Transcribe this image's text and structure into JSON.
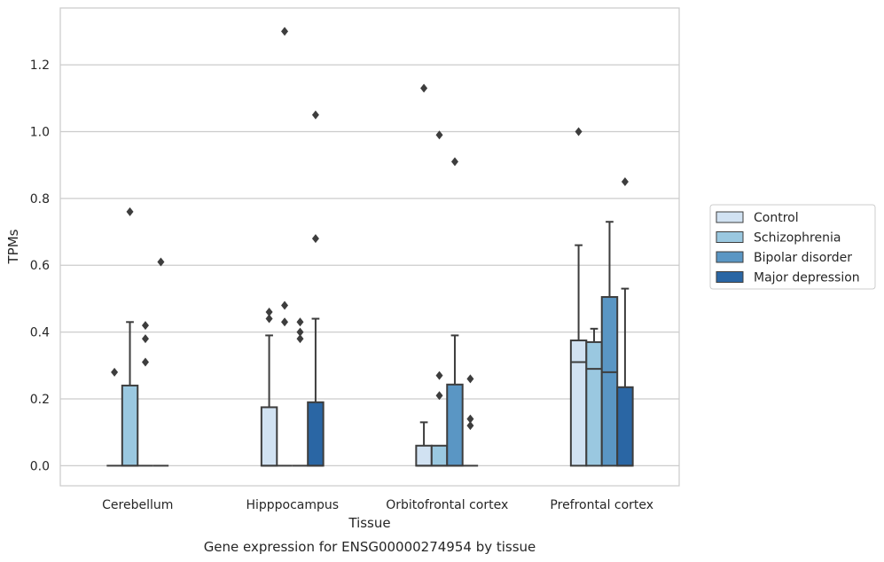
{
  "caption": "Gene expression for ENSG00000274954 by tissue",
  "chart_data": {
    "type": "box",
    "xlabel": "Tissue",
    "ylabel": "TPMs",
    "ylim": [
      -0.06,
      1.37
    ],
    "yticks": [
      0.0,
      0.2,
      0.4,
      0.6,
      0.8,
      1.0,
      1.2
    ],
    "ytick_labels": [
      "0.0",
      "0.2",
      "0.4",
      "0.6",
      "0.8",
      "1.0",
      "1.2"
    ],
    "grid": "horizontal",
    "legend_position": "right",
    "categories": [
      "Cerebellum",
      "Hipppocampus",
      "Orbitofrontal cortex",
      "Prefrontal cortex"
    ],
    "series": [
      {
        "name": "Control",
        "color": "#d1e2f2",
        "boxes": [
          {
            "q1": 0.0,
            "median": 0.0,
            "q3": 0.0,
            "whisker_low": 0.0,
            "whisker_high": 0.0,
            "outliers": [
              0.28
            ]
          },
          {
            "q1": 0.0,
            "median": 0.0,
            "q3": 0.175,
            "whisker_low": 0.0,
            "whisker_high": 0.39,
            "outliers": [
              0.44,
              0.46
            ]
          },
          {
            "q1": 0.0,
            "median": 0.0,
            "q3": 0.06,
            "whisker_low": 0.0,
            "whisker_high": 0.13,
            "outliers": [
              1.13
            ]
          },
          {
            "q1": 0.0,
            "median": 0.31,
            "q3": 0.375,
            "whisker_low": 0.0,
            "whisker_high": 0.66,
            "outliers": [
              1.0
            ]
          }
        ]
      },
      {
        "name": "Schizophrenia",
        "color": "#9ac8e0",
        "boxes": [
          {
            "q1": 0.0,
            "median": 0.0,
            "q3": 0.24,
            "whisker_low": 0.0,
            "whisker_high": 0.43,
            "outliers": [
              0.76
            ]
          },
          {
            "q1": 0.0,
            "median": 0.0,
            "q3": 0.0,
            "whisker_low": 0.0,
            "whisker_high": 0.0,
            "outliers": [
              0.48,
              0.43,
              1.3
            ]
          },
          {
            "q1": 0.0,
            "median": 0.0,
            "q3": 0.06,
            "whisker_low": 0.0,
            "whisker_high": 0.06,
            "outliers": [
              0.21,
              0.27,
              0.99
            ]
          },
          {
            "q1": 0.0,
            "median": 0.29,
            "q3": 0.37,
            "whisker_low": 0.0,
            "whisker_high": 0.41,
            "outliers": []
          }
        ]
      },
      {
        "name": "Bipolar disorder",
        "color": "#5a96c4",
        "boxes": [
          {
            "q1": 0.0,
            "median": 0.0,
            "q3": 0.0,
            "whisker_low": 0.0,
            "whisker_high": 0.0,
            "outliers": [
              0.31,
              0.38,
              0.42
            ]
          },
          {
            "q1": 0.0,
            "median": 0.0,
            "q3": 0.0,
            "whisker_low": 0.0,
            "whisker_high": 0.0,
            "outliers": [
              0.38,
              0.4,
              0.43
            ]
          },
          {
            "q1": 0.0,
            "median": 0.0,
            "q3": 0.243,
            "whisker_low": 0.0,
            "whisker_high": 0.39,
            "outliers": [
              0.91
            ]
          },
          {
            "q1": 0.0,
            "median": 0.28,
            "q3": 0.505,
            "whisker_low": 0.0,
            "whisker_high": 0.73,
            "outliers": []
          }
        ]
      },
      {
        "name": "Major depression",
        "color": "#2a66a4",
        "boxes": [
          {
            "q1": 0.0,
            "median": 0.0,
            "q3": 0.0,
            "whisker_low": 0.0,
            "whisker_high": 0.0,
            "outliers": [
              0.61
            ]
          },
          {
            "q1": 0.0,
            "median": 0.0,
            "q3": 0.19,
            "whisker_low": 0.0,
            "whisker_high": 0.44,
            "outliers": [
              0.68,
              1.05
            ]
          },
          {
            "q1": 0.0,
            "median": 0.0,
            "q3": 0.0,
            "whisker_low": 0.0,
            "whisker_high": 0.0,
            "outliers": [
              0.12,
              0.14,
              0.26
            ]
          },
          {
            "q1": 0.0,
            "median": 0.0,
            "q3": 0.235,
            "whisker_low": 0.0,
            "whisker_high": 0.53,
            "outliers": [
              0.85
            ]
          }
        ]
      }
    ]
  }
}
